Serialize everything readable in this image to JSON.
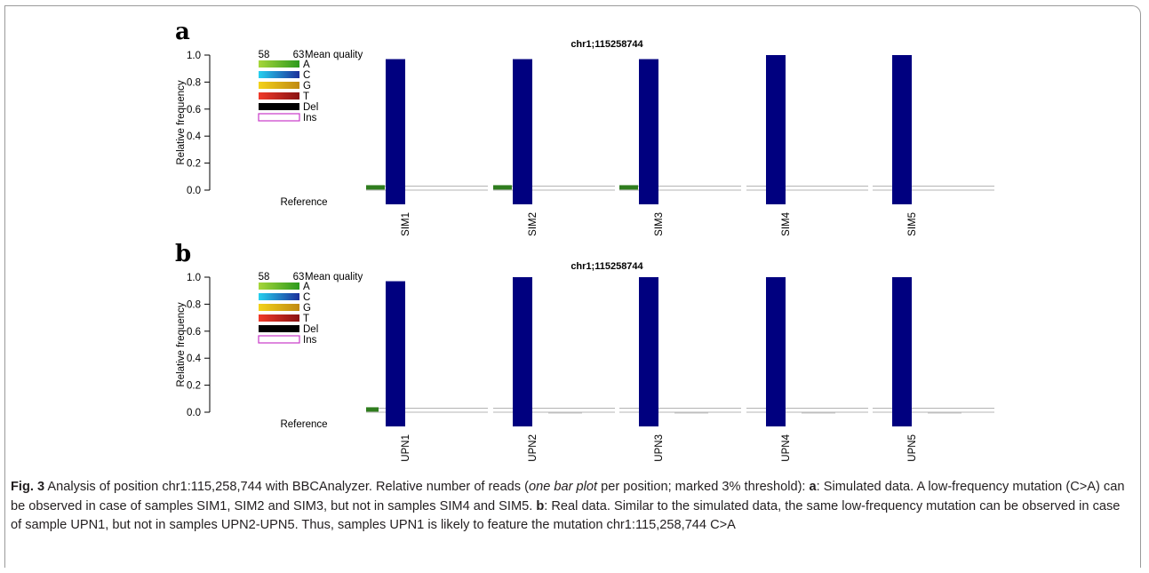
{
  "figure": {
    "colors": {
      "bar": "#00007f",
      "mutation": "#2f7d1e",
      "threshold_line": "#b4b4b4",
      "del": "#000000",
      "ins_border": "#c838c8"
    },
    "panels": [
      {
        "letter": "a",
        "title": "chr1;115258744",
        "ylabel": "Relative frequency",
        "reference_label": "Reference",
        "legend": {
          "scale_min": "58",
          "scale_max": "63",
          "scale_title": "Mean quality",
          "entries": [
            {
              "label": "A",
              "from": "#a6d63a",
              "to": "#2c9a1c"
            },
            {
              "label": "C",
              "from": "#27d0ef",
              "to": "#1b2f9a"
            },
            {
              "label": "G",
              "from": "#f3d21a",
              "to": "#c08a12"
            },
            {
              "label": "T",
              "from": "#f03a2a",
              "to": "#8a1212"
            },
            {
              "label": "Del",
              "from": "#000000",
              "to": "#000000"
            },
            {
              "label": "Ins",
              "from": "#ffffff",
              "to": "#ffffff"
            }
          ]
        }
      },
      {
        "letter": "b",
        "title": "chr1;115258744",
        "ylabel": "Relative frequency",
        "reference_label": "Reference",
        "legend": {
          "scale_min": "58",
          "scale_max": "63",
          "scale_title": "Mean quality",
          "entries": [
            {
              "label": "A",
              "from": "#a6d63a",
              "to": "#2c9a1c"
            },
            {
              "label": "C",
              "from": "#27d0ef",
              "to": "#1b2f9a"
            },
            {
              "label": "G",
              "from": "#f3d21a",
              "to": "#c08a12"
            },
            {
              "label": "T",
              "from": "#f03a2a",
              "to": "#8a1212"
            },
            {
              "label": "Del",
              "from": "#000000",
              "to": "#000000"
            },
            {
              "label": "Ins",
              "from": "#ffffff",
              "to": "#ffffff"
            }
          ]
        }
      }
    ]
  },
  "chart_data": [
    {
      "type": "bar",
      "title": "chr1;115258744",
      "xlabel": "",
      "ylabel": "Relative frequency",
      "ylim": [
        0,
        1.0
      ],
      "yticks": [
        "0.0",
        "0.2",
        "0.4",
        "0.6",
        "0.8",
        "1.0"
      ],
      "threshold": 0.03,
      "categories": [
        "SIM1",
        "SIM2",
        "SIM3",
        "SIM4",
        "SIM5"
      ],
      "series": [
        {
          "name": "C",
          "values": [
            0.97,
            0.97,
            0.97,
            1.0,
            1.0
          ]
        },
        {
          "name": "A",
          "values": [
            0.03,
            0.03,
            0.03,
            0.0,
            0.0
          ]
        }
      ]
    },
    {
      "type": "bar",
      "title": "chr1;115258744",
      "xlabel": "",
      "ylabel": "Relative frequency",
      "ylim": [
        0,
        1.0
      ],
      "yticks": [
        "0.0",
        "0.2",
        "0.4",
        "0.6",
        "0.8",
        "1.0"
      ],
      "threshold": 0.03,
      "categories": [
        "UPN1",
        "UPN2",
        "UPN3",
        "UPN4",
        "UPN5"
      ],
      "series": [
        {
          "name": "C",
          "values": [
            0.97,
            1.0,
            1.0,
            1.0,
            1.0
          ]
        },
        {
          "name": "A",
          "values": [
            0.02,
            0.0,
            0.0,
            0.0,
            0.0
          ]
        }
      ]
    }
  ],
  "caption": {
    "fig_label": "Fig. 3",
    "text1": " Analysis of position chr1:115,258,744 with BBCAnalyzer. Relative number of reads (",
    "italic1": "one bar plot",
    "text2": " per position; marked 3% threshold): ",
    "bold_a": "a",
    "text3": ": Simulated data. A low-frequency mutation (C>A) can be observed in case of samples SIM1, SIM2 and SIM3, but not in samples SIM4 and SIM5. ",
    "bold_b": "b",
    "text4": ": Real data. Similar to the simulated data, the same low-frequency mutation can be observed in case of sample UPN1, but not in samples UPN2-UPN5. Thus, samples UPN1 is likely to feature the mutation chr1:115,258,744 C>A"
  }
}
